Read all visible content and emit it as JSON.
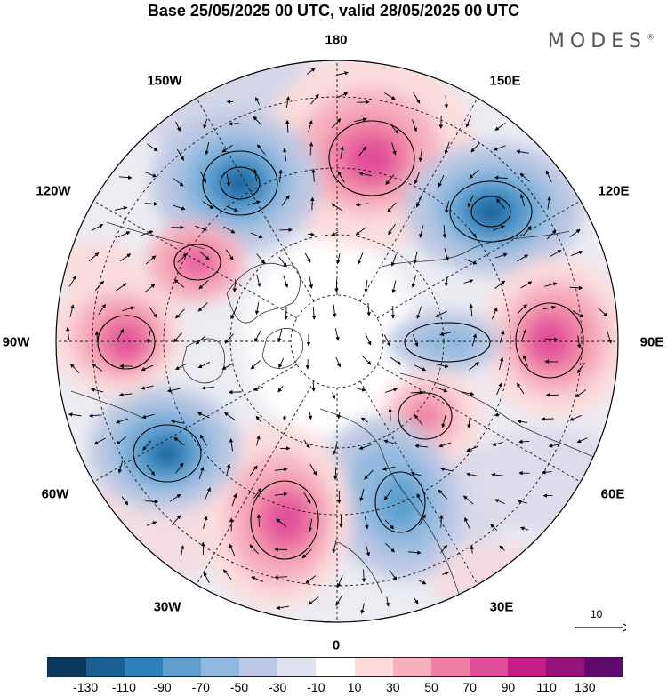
{
  "title": "Base 25/05/2025 00 UTC, valid 28/05/2025 00 UTC",
  "brand": "MODES",
  "brand_mark": "®",
  "map": {
    "projection": "north polar stereographic",
    "longitude_labels": {
      "lon_180": "180",
      "lon_150E": "150E",
      "lon_120E": "120E",
      "lon_90E": "90E",
      "lon_60E": "60E",
      "lon_30E": "30E",
      "lon_0": "0",
      "lon_30W": "30W",
      "lon_60W": "60W",
      "lon_90W": "90W",
      "lon_120W": "120W",
      "lon_150W": "150W"
    },
    "centers": [
      {
        "type": "negative",
        "near": "150W",
        "level": -110
      },
      {
        "type": "positive",
        "near": "180",
        "level": 90
      },
      {
        "type": "negative",
        "near": "130E",
        "level": -110
      },
      {
        "type": "positive",
        "near": "90E",
        "level": 90
      },
      {
        "type": "negative",
        "near": "75E",
        "level": -50
      },
      {
        "type": "positive",
        "near": "50E",
        "level": 70
      },
      {
        "type": "negative",
        "near": "15E",
        "level": -70
      },
      {
        "type": "positive",
        "near": "15W",
        "level": 90
      },
      {
        "type": "negative",
        "near": "60W",
        "level": -110
      },
      {
        "type": "positive",
        "near": "90W",
        "level": 90
      },
      {
        "type": "positive",
        "near": "115W",
        "level": 70
      }
    ]
  },
  "reference_vector": {
    "label": "10"
  },
  "colorbar": {
    "colors": [
      "#0c3a5e",
      "#1a5f92",
      "#2f80bb",
      "#5fa0cf",
      "#91b9df",
      "#bcc8e3",
      "#e0e1ef",
      "#ffffff",
      "#fbdcdc",
      "#f6b0bd",
      "#ef7fa5",
      "#e04f99",
      "#c71d86",
      "#951278",
      "#5e0a6e"
    ],
    "tick_labels": [
      "-130",
      "-110",
      "-90",
      "-70",
      "-50",
      "-30",
      "-10",
      "10",
      "30",
      "50",
      "70",
      "90",
      "110",
      "130"
    ]
  }
}
